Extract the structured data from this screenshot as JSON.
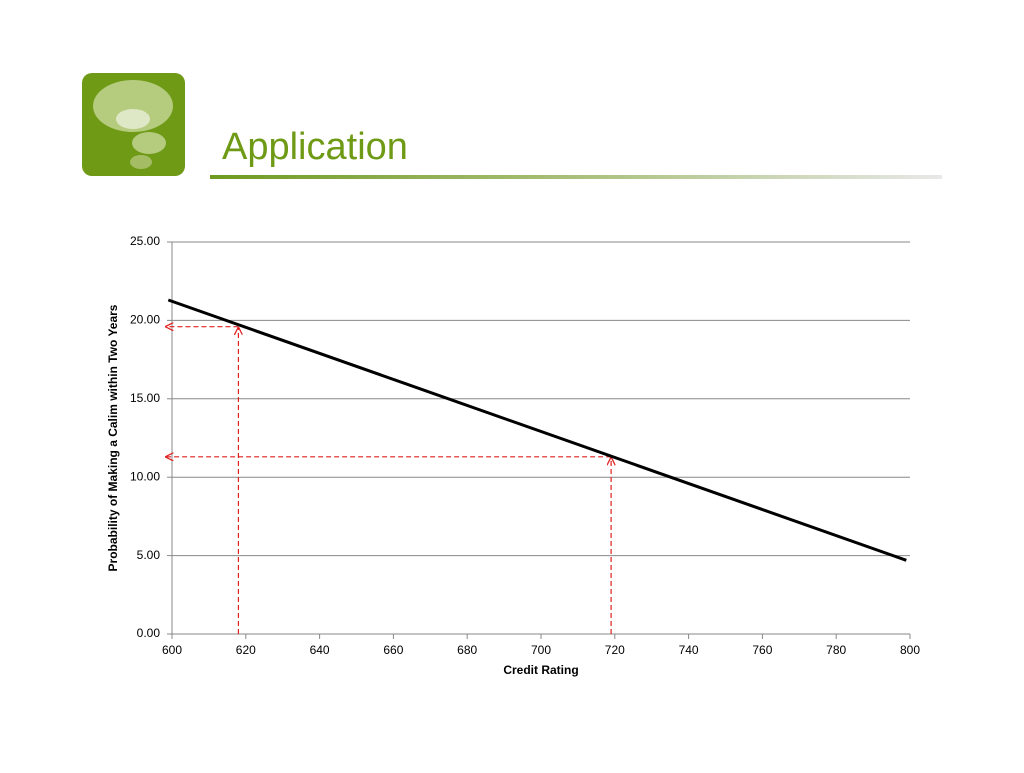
{
  "chart_data": {
    "type": "line",
    "title": "Application",
    "x_label": "Credit Rating",
    "y_label": "Probability of Making a  Calim within Two Years",
    "x": [
      599,
      799
    ],
    "values": [
      21.3,
      4.7
    ],
    "color": "#000000",
    "guides": [
      {
        "x": 618,
        "y": 19.6
      },
      {
        "x": 719,
        "y": 11.3
      }
    ],
    "guide_color": "#e02020",
    "xlim": [
      600,
      800
    ],
    "xticks": [
      600,
      620,
      640,
      660,
      680,
      700,
      720,
      740,
      760,
      780,
      800
    ],
    "ylim": [
      0,
      25
    ],
    "yticks": [
      {
        "value": 0,
        "label": "0.00"
      },
      {
        "value": 5,
        "label": "5.00"
      },
      {
        "value": 10,
        "label": "10.00"
      },
      {
        "value": 15,
        "label": "15.00"
      },
      {
        "value": 20,
        "label": "20.00"
      },
      {
        "value": 25,
        "label": "25.00"
      }
    ],
    "grid": true
  }
}
